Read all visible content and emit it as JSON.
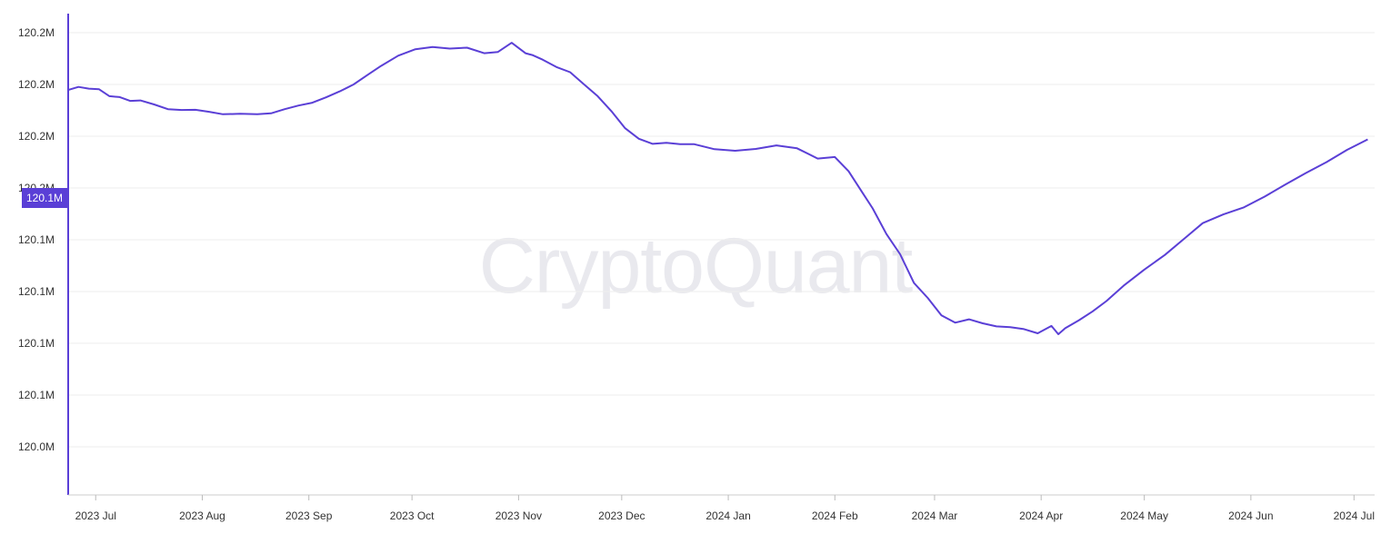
{
  "watermark": "CryptoQuant",
  "colors": {
    "line": "#5a3fd6",
    "axis": "#5a3fd6",
    "grid": "#eeeeee",
    "last_badge": "#5a3fd6"
  },
  "last_value_label": "120.1M",
  "chart_data": {
    "type": "line",
    "title": "",
    "xlabel": "",
    "ylabel": "",
    "grid": true,
    "y_tick_labels": [
      "120.2M",
      "120.2M",
      "120.2M",
      "120.2M",
      "120.1M",
      "120.1M",
      "120.1M",
      "120.1M",
      "120.0M"
    ],
    "x_tick_labels": [
      "2023 Jul",
      "2023 Aug",
      "2023 Sep",
      "2023 Oct",
      "2023 Nov",
      "2023 Dec",
      "2024 Jan",
      "2024 Feb",
      "2024 Mar",
      "2024 Apr",
      "2024 May",
      "2024 Jun",
      "2024 Jul"
    ],
    "ylim": [
      119.9875,
      120.2037
    ],
    "xlim": [
      "2023-06-23",
      "2024-07-07"
    ],
    "series": [
      {
        "x": [
          "2023-06-23",
          "2023-06-26",
          "2023-06-29",
          "2023-07-02",
          "2023-07-05",
          "2023-07-08",
          "2023-07-11",
          "2023-07-14",
          "2023-07-18",
          "2023-07-22",
          "2023-07-26",
          "2023-07-30",
          "2023-08-03",
          "2023-08-07",
          "2023-08-12",
          "2023-08-17",
          "2023-08-21",
          "2023-08-25",
          "2023-08-29",
          "2023-09-02",
          "2023-09-06",
          "2023-09-10",
          "2023-09-14",
          "2023-09-18",
          "2023-09-22",
          "2023-09-27",
          "2023-10-02",
          "2023-10-07",
          "2023-10-12",
          "2023-10-17",
          "2023-10-22",
          "2023-10-26",
          "2023-10-30",
          "2023-11-03",
          "2023-11-05",
          "2023-11-08",
          "2023-11-12",
          "2023-11-16",
          "2023-11-20",
          "2023-11-24",
          "2023-11-28",
          "2023-12-02",
          "2023-12-06",
          "2023-12-10",
          "2023-12-14",
          "2023-12-18",
          "2023-12-22",
          "2023-12-28",
          "2024-01-03",
          "2024-01-09",
          "2024-01-15",
          "2024-01-21",
          "2024-01-27",
          "2024-02-01",
          "2024-02-05",
          "2024-02-09",
          "2024-02-12",
          "2024-02-16",
          "2024-02-20",
          "2024-02-24",
          "2024-02-28",
          "2024-03-03",
          "2024-03-07",
          "2024-03-11",
          "2024-03-15",
          "2024-03-19",
          "2024-03-23",
          "2024-03-27",
          "2024-03-31",
          "2024-04-04",
          "2024-04-06",
          "2024-04-08",
          "2024-04-12",
          "2024-04-16",
          "2024-04-20",
          "2024-04-25",
          "2024-05-01",
          "2024-05-07",
          "2024-05-13",
          "2024-05-18",
          "2024-05-24",
          "2024-05-30",
          "2024-06-05",
          "2024-06-11",
          "2024-06-17",
          "2024-06-23",
          "2024-06-29",
          "2024-07-05"
        ],
        "values": [
          120.1694,
          120.1708,
          120.17,
          120.1697,
          120.1666,
          120.1662,
          120.1645,
          120.1647,
          120.1629,
          120.1608,
          120.1604,
          120.1605,
          120.1596,
          120.1585,
          120.1587,
          120.1585,
          120.1589,
          120.1608,
          120.1624,
          120.1637,
          120.1661,
          120.1688,
          120.1719,
          120.1761,
          120.1802,
          120.1848,
          120.1877,
          120.1887,
          120.188,
          120.1884,
          120.1859,
          120.1865,
          120.1906,
          120.1859,
          120.1851,
          120.183,
          120.1797,
          120.1774,
          120.172,
          120.1666,
          120.1599,
          120.1522,
          120.1475,
          120.1452,
          120.1457,
          120.1451,
          120.1451,
          120.1428,
          120.1421,
          120.1429,
          120.1445,
          120.1432,
          120.1386,
          120.1393,
          120.1329,
          120.1234,
          120.1162,
          120.1047,
          120.0956,
          120.0827,
          120.076,
          120.0682,
          120.0649,
          120.0664,
          120.0646,
          120.0632,
          120.0629,
          120.062,
          120.0601,
          120.0634,
          120.0597,
          120.0624,
          120.066,
          120.07,
          120.0746,
          120.0815,
          120.0887,
          120.0953,
          120.1031,
          120.1096,
          120.1135,
          120.1167,
          120.1215,
          120.1269,
          120.1321,
          120.137,
          120.1425,
          120.1472
        ]
      }
    ]
  }
}
